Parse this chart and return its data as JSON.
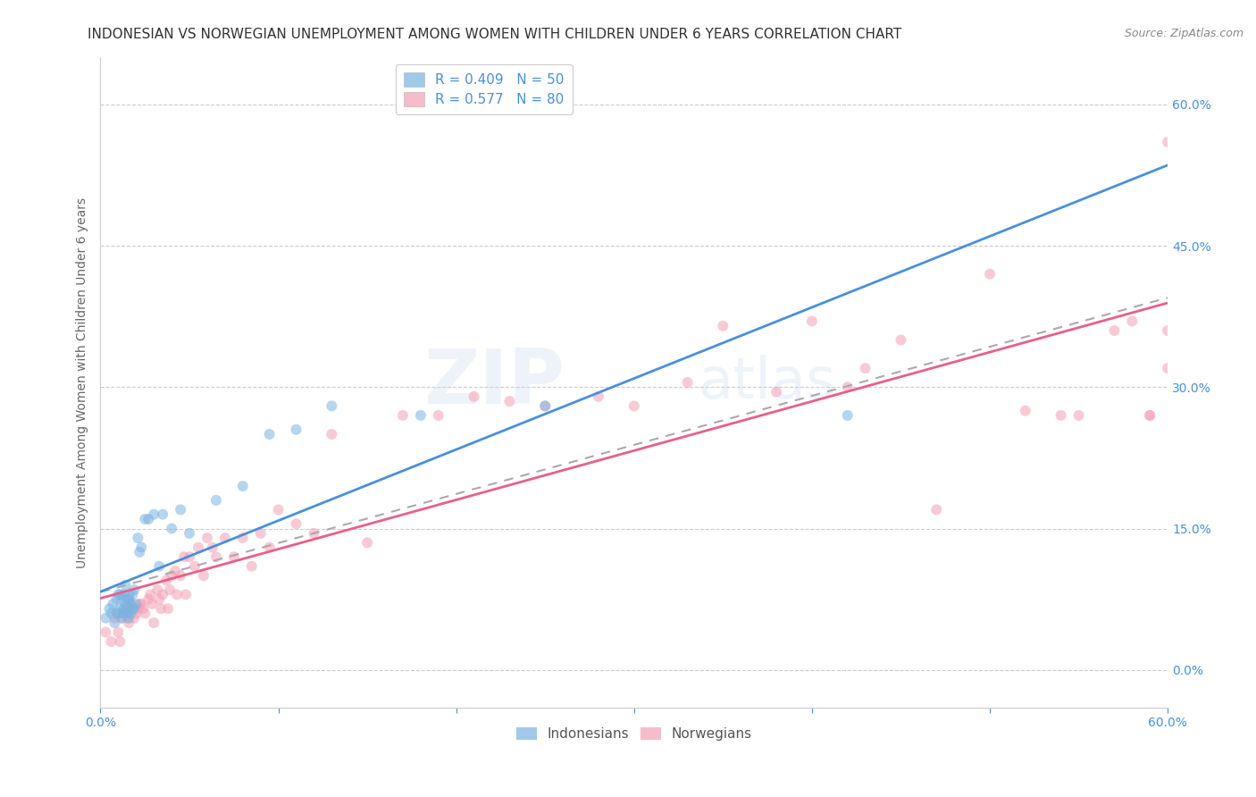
{
  "title": "INDONESIAN VS NORWEGIAN UNEMPLOYMENT AMONG WOMEN WITH CHILDREN UNDER 6 YEARS CORRELATION CHART",
  "source": "Source: ZipAtlas.com",
  "ylabel": "Unemployment Among Women with Children Under 6 years",
  "xlim": [
    0.0,
    0.6
  ],
  "ylim": [
    -0.04,
    0.65
  ],
  "yticks": [
    0.0,
    0.15,
    0.3,
    0.45,
    0.6
  ],
  "right_ytick_labels": [
    "0.0%",
    "15.0%",
    "30.0%",
    "45.0%",
    "60.0%"
  ],
  "indonesian_R": 0.409,
  "indonesian_N": 50,
  "norwegian_R": 0.577,
  "norwegian_N": 80,
  "indonesian_color": "#7ab3e0",
  "norwegian_color": "#f4a0b5",
  "indonesian_line_color": "#4a90d9",
  "norwegian_line_color": "#e8608a",
  "dashed_line_color": "#aaaaaa",
  "background_color": "#ffffff",
  "grid_color": "#cccccc",
  "title_color": "#333333",
  "axis_label_color": "#4a90d9",
  "watermark_zip": "ZIP",
  "watermark_atlas": "atlas",
  "indonesian_x": [
    0.003,
    0.005,
    0.006,
    0.007,
    0.008,
    0.009,
    0.009,
    0.01,
    0.01,
    0.011,
    0.011,
    0.012,
    0.012,
    0.013,
    0.013,
    0.013,
    0.014,
    0.014,
    0.015,
    0.015,
    0.015,
    0.016,
    0.016,
    0.016,
    0.017,
    0.017,
    0.018,
    0.018,
    0.019,
    0.019,
    0.02,
    0.021,
    0.022,
    0.023,
    0.025,
    0.027,
    0.03,
    0.033,
    0.035,
    0.04,
    0.045,
    0.05,
    0.065,
    0.08,
    0.095,
    0.11,
    0.13,
    0.18,
    0.25,
    0.42
  ],
  "indonesian_y": [
    0.055,
    0.065,
    0.06,
    0.07,
    0.05,
    0.075,
    0.06,
    0.06,
    0.08,
    0.065,
    0.08,
    0.055,
    0.075,
    0.06,
    0.065,
    0.08,
    0.07,
    0.09,
    0.065,
    0.075,
    0.06,
    0.055,
    0.075,
    0.08,
    0.06,
    0.07,
    0.065,
    0.08,
    0.065,
    0.085,
    0.07,
    0.14,
    0.125,
    0.13,
    0.16,
    0.16,
    0.165,
    0.11,
    0.165,
    0.15,
    0.17,
    0.145,
    0.18,
    0.195,
    0.25,
    0.255,
    0.28,
    0.27,
    0.28,
    0.27
  ],
  "norwegian_x": [
    0.003,
    0.006,
    0.008,
    0.01,
    0.011,
    0.012,
    0.013,
    0.014,
    0.015,
    0.016,
    0.017,
    0.018,
    0.019,
    0.02,
    0.021,
    0.022,
    0.023,
    0.024,
    0.025,
    0.027,
    0.028,
    0.029,
    0.03,
    0.032,
    0.033,
    0.034,
    0.035,
    0.037,
    0.038,
    0.039,
    0.04,
    0.042,
    0.043,
    0.045,
    0.047,
    0.048,
    0.05,
    0.053,
    0.055,
    0.058,
    0.06,
    0.063,
    0.065,
    0.07,
    0.075,
    0.08,
    0.085,
    0.09,
    0.095,
    0.1,
    0.11,
    0.12,
    0.13,
    0.15,
    0.17,
    0.19,
    0.21,
    0.23,
    0.25,
    0.28,
    0.3,
    0.33,
    0.35,
    0.38,
    0.4,
    0.42,
    0.43,
    0.45,
    0.47,
    0.5,
    0.52,
    0.54,
    0.55,
    0.57,
    0.58,
    0.59,
    0.59,
    0.6,
    0.6,
    0.6
  ],
  "norwegian_y": [
    0.04,
    0.03,
    0.055,
    0.04,
    0.03,
    0.055,
    0.06,
    0.065,
    0.055,
    0.05,
    0.07,
    0.065,
    0.055,
    0.06,
    0.065,
    0.07,
    0.07,
    0.065,
    0.06,
    0.075,
    0.08,
    0.07,
    0.05,
    0.085,
    0.075,
    0.065,
    0.08,
    0.095,
    0.065,
    0.085,
    0.1,
    0.105,
    0.08,
    0.1,
    0.12,
    0.08,
    0.12,
    0.11,
    0.13,
    0.1,
    0.14,
    0.13,
    0.12,
    0.14,
    0.12,
    0.14,
    0.11,
    0.145,
    0.13,
    0.17,
    0.155,
    0.145,
    0.25,
    0.135,
    0.27,
    0.27,
    0.29,
    0.285,
    0.28,
    0.29,
    0.28,
    0.305,
    0.365,
    0.295,
    0.37,
    0.3,
    0.32,
    0.35,
    0.17,
    0.42,
    0.275,
    0.27,
    0.27,
    0.36,
    0.37,
    0.27,
    0.27,
    0.36,
    0.56,
    0.32
  ],
  "title_fontsize": 11,
  "source_fontsize": 9,
  "axis_fontsize": 10,
  "legend_fontsize": 11,
  "scatter_size": 75,
  "scatter_alpha": 0.55,
  "line_width": 2.0
}
